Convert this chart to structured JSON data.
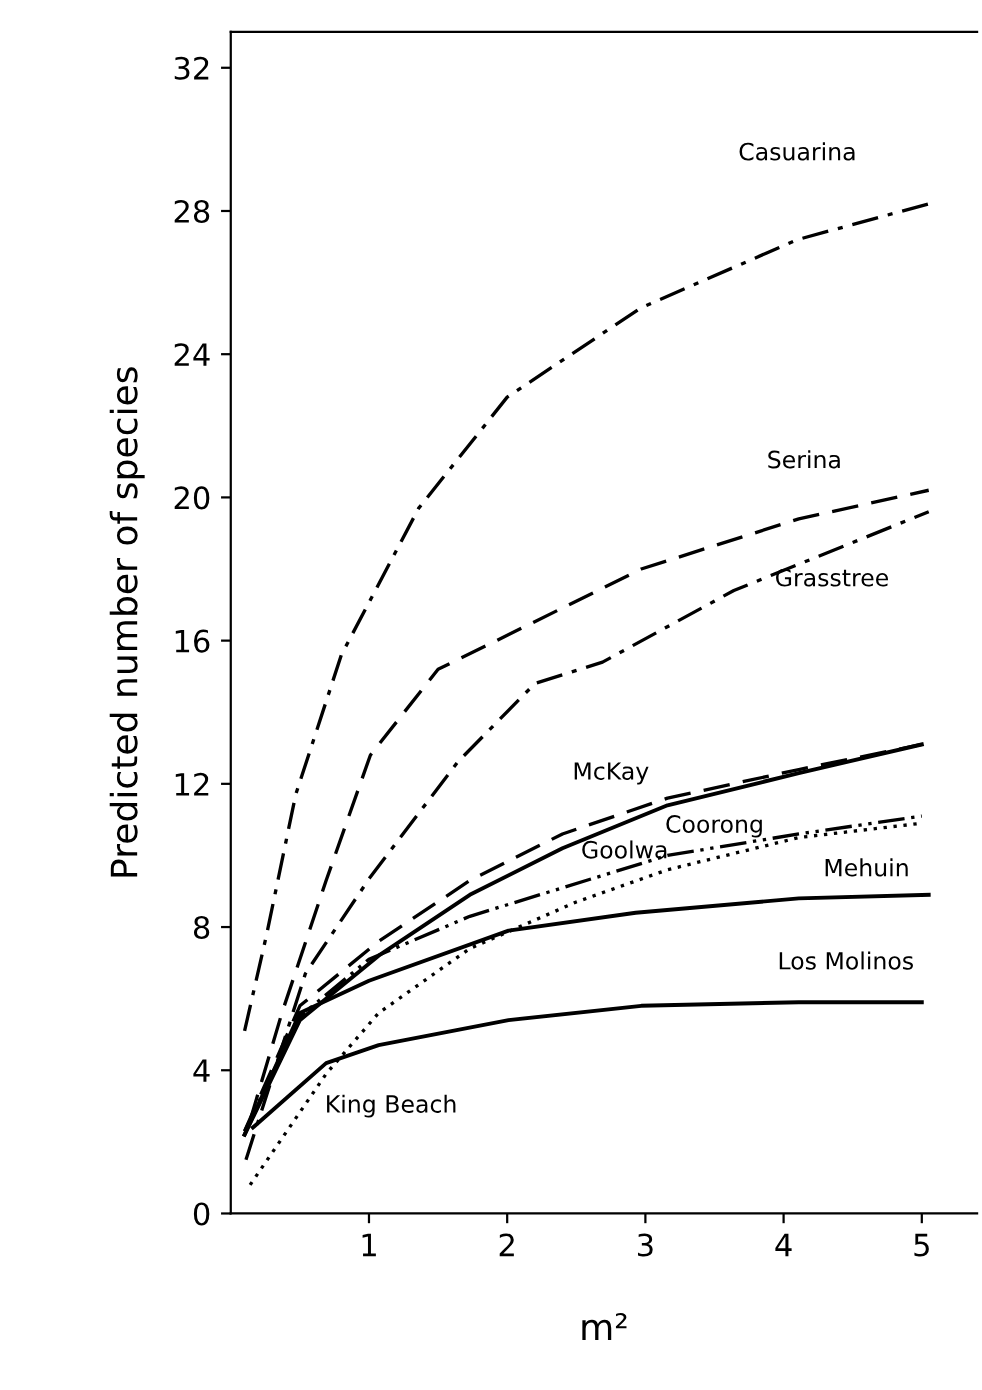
{
  "chart_data": {
    "type": "line",
    "xlabel": "m²",
    "ylabel": "Predicted number of species",
    "xlim": [
      0,
      5.4
    ],
    "ylim": [
      0,
      33
    ],
    "xticks": [
      1,
      2,
      3,
      4,
      5
    ],
    "yticks": [
      0,
      4,
      8,
      12,
      16,
      20,
      24,
      28,
      32
    ],
    "grid": false,
    "legend": false,
    "marker": "none",
    "series": [
      {
        "name": "Casuarina",
        "color": "#000000",
        "line_style": "dashdot",
        "x": [
          0.1,
          0.26,
          0.47,
          0.8,
          1.36,
          2.0,
          2.97,
          4.1,
          5.05
        ],
        "values": [
          5.1,
          7.8,
          11.7,
          15.6,
          19.7,
          22.8,
          25.3,
          27.2,
          28.2
        ]
      },
      {
        "name": "Serina",
        "color": "#000000",
        "line_style": "dashed",
        "x": [
          0.14,
          0.37,
          0.69,
          1.01,
          1.5,
          1.87,
          2.97,
          4.11,
          5.05
        ],
        "values": [
          2.6,
          5.6,
          9.3,
          12.8,
          15.2,
          15.9,
          18.0,
          19.4,
          20.2
        ]
      },
      {
        "name": "Grasstree",
        "color": "#000000",
        "line_style": "dashdot",
        "x": [
          0.11,
          0.54,
          1.01,
          1.64,
          2.2,
          2.69,
          3.64,
          5.05
        ],
        "values": [
          1.5,
          6.7,
          9.4,
          12.6,
          14.8,
          15.4,
          17.4,
          19.6
        ]
      },
      {
        "name": "McKay",
        "color": "#000000",
        "line_style": "dashed",
        "x": [
          0.1,
          0.5,
          1.07,
          1.73,
          2.4,
          3.16,
          4.11,
          5.0
        ],
        "values": [
          2.3,
          5.8,
          7.6,
          9.3,
          10.6,
          11.6,
          12.4,
          13.1
        ]
      },
      {
        "name": "Goolwa",
        "color": "#000000",
        "line_style": "solid",
        "x": [
          0.1,
          0.5,
          1.07,
          1.73,
          2.4,
          3.16,
          4.11,
          5.0
        ],
        "values": [
          2.2,
          5.4,
          7.2,
          8.9,
          10.2,
          11.4,
          12.3,
          13.1
        ]
      },
      {
        "name": "Coorong",
        "color": "#000000",
        "line_style": "dashdotdot",
        "x": [
          0.1,
          0.5,
          1.0,
          1.73,
          3.16,
          4.11,
          5.0
        ],
        "values": [
          2.3,
          5.5,
          7.1,
          8.3,
          10.0,
          10.6,
          11.1
        ]
      },
      {
        "name": "Mehuin",
        "color": "#000000",
        "line_style": "solid",
        "x": [
          0.1,
          0.5,
          1.0,
          2.01,
          2.93,
          4.11,
          5.05
        ],
        "values": [
          2.2,
          5.6,
          6.5,
          7.9,
          8.4,
          8.8,
          8.9
        ]
      },
      {
        "name": "King Beach",
        "color": "#000000",
        "line_style": "dotted",
        "x": [
          0.14,
          0.69,
          1.07,
          1.73,
          2.5,
          3.16,
          4.11,
          5.0
        ],
        "values": [
          0.8,
          3.9,
          5.6,
          7.4,
          8.7,
          9.6,
          10.5,
          10.9
        ]
      },
      {
        "name": "Los Molinos",
        "color": "#000000",
        "line_style": "solid",
        "x": [
          0.16,
          0.69,
          1.07,
          2.01,
          2.97,
          4.11,
          5.0
        ],
        "values": [
          2.4,
          4.2,
          4.7,
          5.4,
          5.8,
          5.9,
          5.9
        ]
      }
    ]
  }
}
